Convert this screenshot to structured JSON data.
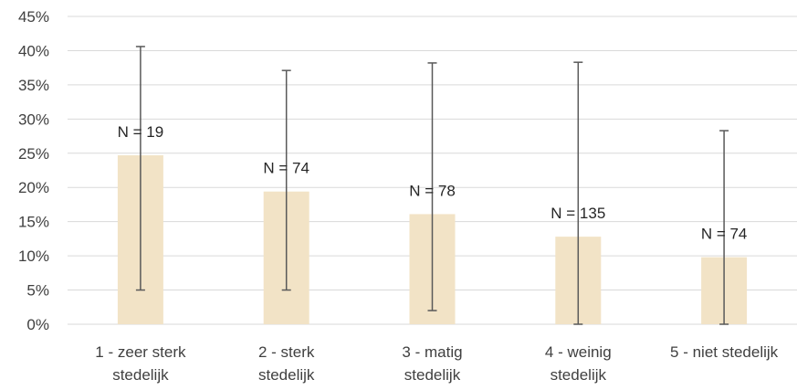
{
  "chart_data": {
    "type": "bar",
    "title": "",
    "xlabel": "",
    "ylabel": "",
    "ylim": [
      0,
      45
    ],
    "y_tick_step": 5,
    "y_tick_format": "percent",
    "grid": true,
    "legend": "none",
    "categories": [
      [
        "1 - zeer sterk",
        "stedelijk"
      ],
      [
        "2 - sterk",
        "stedelijk"
      ],
      [
        "3 - matig",
        "stedelijk"
      ],
      [
        "4 - weinig",
        "stedelijk"
      ],
      [
        "5 - niet stedelijk"
      ]
    ],
    "values": [
      24.7,
      19.4,
      16.1,
      12.8,
      9.8
    ],
    "error_low": [
      5.0,
      5.0,
      2.0,
      0.0,
      0.0
    ],
    "error_high": [
      40.6,
      37.1,
      38.2,
      38.3,
      28.3
    ],
    "data_labels": [
      "N = 19",
      "N = 74",
      "N = 78",
      "N = 135",
      "N = 74"
    ],
    "bar_color": "#F2E3C6",
    "error_color": "#595959",
    "grid_color": "#D9D9D9"
  }
}
